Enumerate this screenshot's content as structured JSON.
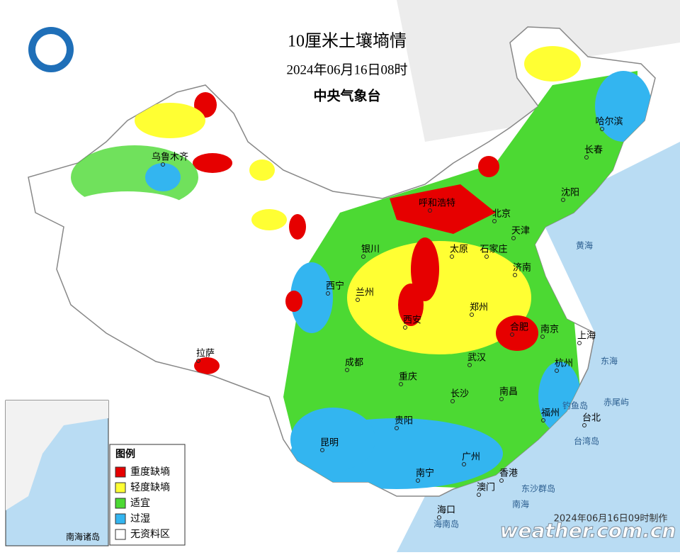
{
  "header": {
    "title": "10厘米土壤墒情",
    "date": "2024年06月16日08时",
    "agency": "中央气象台"
  },
  "legend": {
    "title": "图例",
    "items": [
      {
        "label": "重度缺墒",
        "color": "#e60000"
      },
      {
        "label": "轻度缺墒",
        "color": "#ffff33"
      },
      {
        "label": "适宜",
        "color": "#4cd933"
      },
      {
        "label": "过湿",
        "color": "#33b5f0"
      },
      {
        "label": "无资料区",
        "color": "#ffffff"
      }
    ]
  },
  "cities": [
    "哈尔滨",
    "长春",
    "沈阳",
    "北京",
    "天津",
    "石家庄",
    "呼和浩特",
    "银川",
    "太原",
    "济南",
    "西宁",
    "兰州",
    "郑州",
    "西安",
    "合肥",
    "南京",
    "上海",
    "杭州",
    "武汉",
    "成都",
    "重庆",
    "长沙",
    "南昌",
    "福州",
    "台北",
    "贵阳",
    "昆明",
    "南宁",
    "广州",
    "香港",
    "澳门",
    "海口",
    "拉萨",
    "乌鲁木齐"
  ],
  "seas": [
    "黄海",
    "东海",
    "南海",
    "台湾岛",
    "东沙群岛",
    "海南岛",
    "钓鱼岛",
    "赤尾屿"
  ],
  "inset": {
    "label": "南海诸岛"
  },
  "footer": {
    "note": "2024年06月16日09时制作",
    "watermark": "weather.com.cn"
  }
}
